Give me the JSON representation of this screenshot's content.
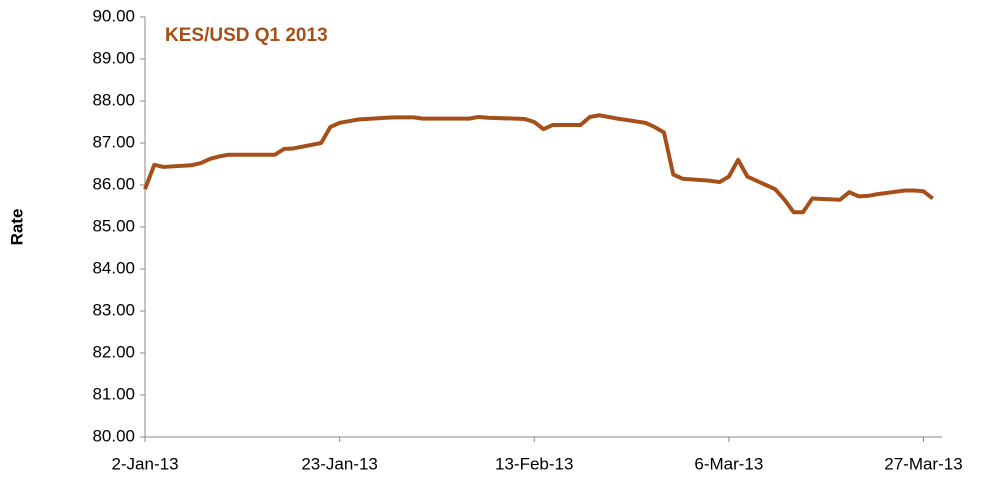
{
  "chart_data": {
    "type": "line",
    "title": "KES/USD Q1 2013",
    "y_label": "Rate",
    "x": [
      "2013-01-02",
      "2013-01-03",
      "2013-01-04",
      "2013-01-07",
      "2013-01-08",
      "2013-01-09",
      "2013-01-10",
      "2013-01-11",
      "2013-01-14",
      "2013-01-15",
      "2013-01-16",
      "2013-01-17",
      "2013-01-18",
      "2013-01-21",
      "2013-01-22",
      "2013-01-23",
      "2013-01-24",
      "2013-01-25",
      "2013-01-28",
      "2013-01-29",
      "2013-01-30",
      "2013-01-31",
      "2013-02-01",
      "2013-02-04",
      "2013-02-05",
      "2013-02-06",
      "2013-02-07",
      "2013-02-08",
      "2013-02-11",
      "2013-02-12",
      "2013-02-13",
      "2013-02-14",
      "2013-02-15",
      "2013-02-18",
      "2013-02-19",
      "2013-02-20",
      "2013-02-21",
      "2013-02-22",
      "2013-02-25",
      "2013-02-26",
      "2013-02-27",
      "2013-02-28",
      "2013-03-01",
      "2013-03-04",
      "2013-03-05",
      "2013-03-06",
      "2013-03-07",
      "2013-03-08",
      "2013-03-11",
      "2013-03-12",
      "2013-03-13",
      "2013-03-14",
      "2013-03-15",
      "2013-03-18",
      "2013-03-19",
      "2013-03-20",
      "2013-03-21",
      "2013-03-22",
      "2013-03-25",
      "2013-03-26",
      "2013-03-27",
      "2013-03-28"
    ],
    "series": [
      {
        "name": "KES/USD",
        "color": "#a5501a",
        "values": [
          85.9,
          86.48,
          86.43,
          86.47,
          86.52,
          86.62,
          86.68,
          86.72,
          86.72,
          86.72,
          86.72,
          86.86,
          86.87,
          87.0,
          87.38,
          87.48,
          87.52,
          87.56,
          87.6,
          87.61,
          87.61,
          87.61,
          87.58,
          87.58,
          87.58,
          87.58,
          87.62,
          87.6,
          87.58,
          87.57,
          87.5,
          87.33,
          87.43,
          87.43,
          87.62,
          87.66,
          87.62,
          87.58,
          87.48,
          87.38,
          87.25,
          86.25,
          86.15,
          86.1,
          86.07,
          86.2,
          86.6,
          86.2,
          85.9,
          85.65,
          85.35,
          85.35,
          85.68,
          85.65,
          85.83,
          85.73,
          85.74,
          85.78,
          85.87,
          85.87,
          85.85,
          85.68
        ]
      }
    ],
    "xlim": [
      "2013-01-02",
      "2013-03-29"
    ],
    "xticks": [
      {
        "value": "2013-01-02",
        "label": "2-Jan-13"
      },
      {
        "value": "2013-01-23",
        "label": "23-Jan-13"
      },
      {
        "value": "2013-02-13",
        "label": "13-Feb-13"
      },
      {
        "value": "2013-03-06",
        "label": "6-Mar-13"
      },
      {
        "value": "2013-03-27",
        "label": "27-Mar-13"
      }
    ],
    "ylim": [
      80,
      90
    ],
    "yticks": [
      {
        "value": 80,
        "label": "80.00"
      },
      {
        "value": 81,
        "label": "81.00"
      },
      {
        "value": 82,
        "label": "82.00"
      },
      {
        "value": 83,
        "label": "83.00"
      },
      {
        "value": 84,
        "label": "84.00"
      },
      {
        "value": 85,
        "label": "85.00"
      },
      {
        "value": 86,
        "label": "86.00"
      },
      {
        "value": 87,
        "label": "87.00"
      },
      {
        "value": 88,
        "label": "88.00"
      },
      {
        "value": 89,
        "label": "89.00"
      },
      {
        "value": 90,
        "label": "90.00"
      }
    ],
    "grid": false
  }
}
